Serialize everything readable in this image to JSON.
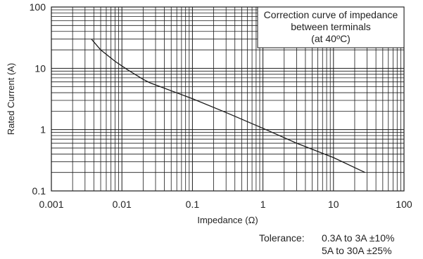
{
  "chart_data": {
    "type": "line",
    "xscale": "log",
    "yscale": "log",
    "xlim": [
      0.001,
      100
    ],
    "ylim": [
      0.1,
      100
    ],
    "x_tick_labels": [
      "0.001",
      "0.01",
      "0.1",
      "1",
      "10",
      "100"
    ],
    "y_tick_labels": [
      "0.1",
      "1",
      "10",
      "100"
    ],
    "xlabel": "Impedance (Ω)",
    "ylabel": "Rated Current (A)",
    "grid": true,
    "annotation": [
      "Correction curve of impedance",
      "between terminals",
      "(at 40ºC)"
    ],
    "series": [
      {
        "x": [
          0.0037,
          0.005,
          0.008,
          0.012,
          0.02,
          0.025,
          0.05,
          0.1,
          0.3,
          1,
          3,
          10,
          28
        ],
        "y": [
          30,
          20,
          13,
          9.5,
          6.6,
          5.8,
          4.3,
          3.2,
          1.9,
          1.05,
          0.6,
          0.35,
          0.2
        ]
      }
    ],
    "color": "#1a1a1a"
  },
  "tolerance": {
    "label": "Tolerance:",
    "lines": [
      "0.3A to 3A ±10%",
      "5A to 30A ±25%"
    ]
  }
}
